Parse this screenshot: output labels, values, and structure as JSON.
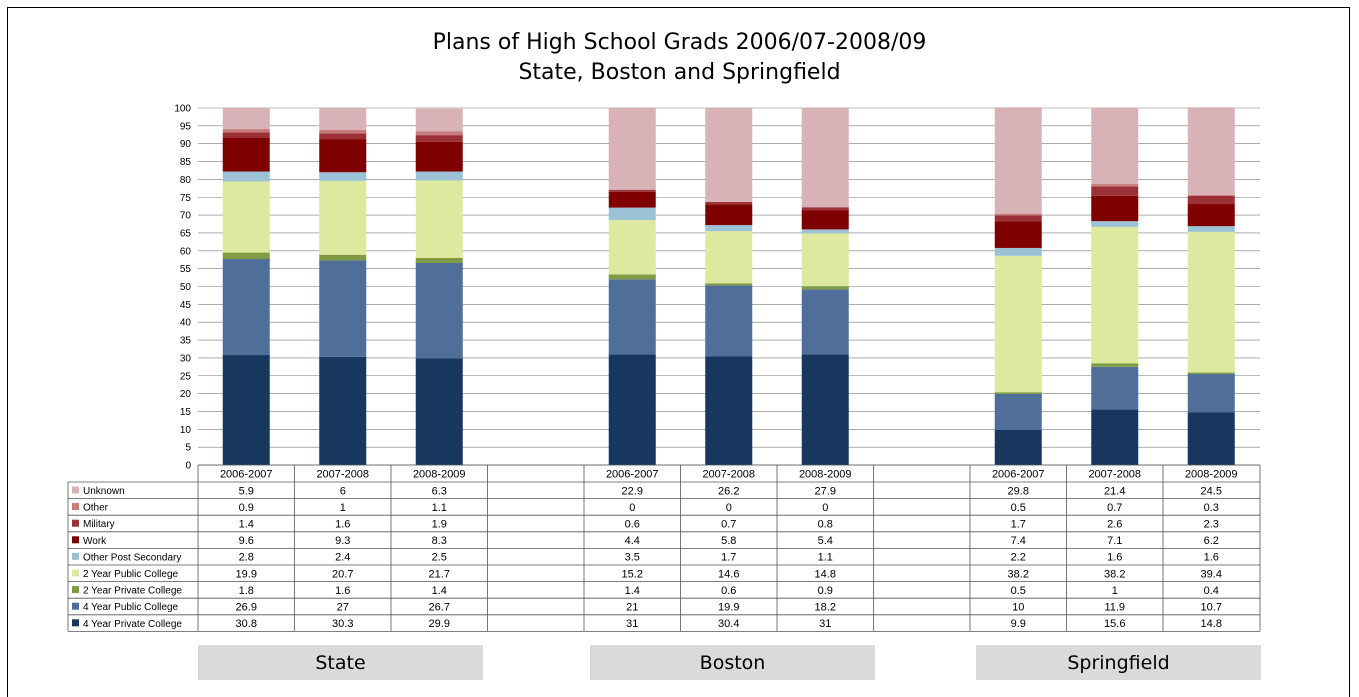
{
  "chart_data": {
    "type": "bar",
    "stacked": true,
    "title": "Plans of High School Grads 2006/07-2008/09",
    "subtitle": "State, Boston and Springfield",
    "ylim": [
      0,
      100
    ],
    "yticks": [
      0,
      5,
      10,
      15,
      20,
      25,
      30,
      35,
      40,
      45,
      50,
      55,
      60,
      65,
      70,
      75,
      80,
      85,
      90,
      95,
      100
    ],
    "grid": true,
    "groups": [
      "State",
      "Boston",
      "Springfield"
    ],
    "categories": [
      "2006-2007",
      "2007-2008",
      "2008-2009"
    ],
    "series": [
      {
        "name": "4 Year Private College",
        "color": "#17375e",
        "values": [
          [
            30.8,
            30.3,
            29.9
          ],
          [
            31,
            30.4,
            31
          ],
          [
            9.9,
            15.6,
            14.8
          ]
        ]
      },
      {
        "name": "4 Year Public College",
        "color": "#4f6e99",
        "values": [
          [
            26.9,
            27,
            26.7
          ],
          [
            21,
            19.9,
            18.2
          ],
          [
            10,
            11.9,
            10.7
          ]
        ]
      },
      {
        "name": "2 Year Private College",
        "color": "#7f9b43",
        "values": [
          [
            1.8,
            1.6,
            1.4
          ],
          [
            1.4,
            0.6,
            0.9
          ],
          [
            0.5,
            1,
            0.4
          ]
        ]
      },
      {
        "name": "2 Year Public College",
        "color": "#dde99e",
        "values": [
          [
            19.9,
            20.7,
            21.7
          ],
          [
            15.2,
            14.6,
            14.8
          ],
          [
            38.2,
            38.2,
            39.4
          ]
        ]
      },
      {
        "name": "Other Post Secondary",
        "color": "#9cc2d5",
        "values": [
          [
            2.8,
            2.4,
            2.5
          ],
          [
            3.5,
            1.7,
            1.1
          ],
          [
            2.2,
            1.6,
            1.6
          ]
        ]
      },
      {
        "name": "Work",
        "color": "#7f0000",
        "values": [
          [
            9.6,
            9.3,
            8.3
          ],
          [
            4.4,
            5.8,
            5.4
          ],
          [
            7.4,
            7.1,
            6.2
          ]
        ]
      },
      {
        "name": "Military",
        "color": "#9b3036",
        "values": [
          [
            1.4,
            1.6,
            1.9
          ],
          [
            0.6,
            0.7,
            0.8
          ],
          [
            1.7,
            2.6,
            2.3
          ]
        ]
      },
      {
        "name": "Other",
        "color": "#c87b7b",
        "values": [
          [
            0.9,
            1,
            1.1
          ],
          [
            0,
            0,
            0
          ],
          [
            0.5,
            0.7,
            0.3
          ]
        ]
      },
      {
        "name": "Unknown",
        "color": "#d9b2b8",
        "values": [
          [
            5.9,
            6,
            6.3
          ],
          [
            22.9,
            26.2,
            27.9
          ],
          [
            29.8,
            21.4,
            24.5
          ]
        ]
      }
    ],
    "table_cells": [
      {
        "series": "Unknown",
        "values": [
          "5.9",
          "6",
          "6.3",
          "22.9",
          "26.2",
          "27.9",
          "29.8",
          "21.4",
          "24.5"
        ]
      },
      {
        "series": "Other",
        "values": [
          "0.9",
          "1",
          "1.1",
          "0",
          "0",
          "0",
          "0.5",
          "0.7",
          "0.3"
        ]
      },
      {
        "series": "Military",
        "values": [
          "1.4",
          "1.6",
          "1.9",
          "0.6",
          "0.7",
          "0.8",
          "1.7",
          "2.6",
          "2.3"
        ]
      },
      {
        "series": "Work",
        "values": [
          "9.6",
          "9.3",
          "8.3",
          "4.4",
          "5.8",
          "5.4",
          "7.4",
          "7.1",
          "6.2"
        ]
      },
      {
        "series": "Other Post Secondary",
        "values": [
          "2.8",
          "2.4",
          "2.5",
          "3.5",
          "1.7",
          "1.1",
          "2.2",
          "1.6",
          "1.6"
        ]
      },
      {
        "series": "2 Year Public College",
        "values": [
          "19.9",
          "20.7",
          "21.7",
          "15.2",
          "14.6",
          "14.8",
          "38.2",
          "38.2",
          "39.4"
        ]
      },
      {
        "series": "2 Year Private College",
        "values": [
          "1.8",
          "1.6",
          "1.4",
          "1.4",
          "0.6",
          "0.9",
          "0.5",
          "1",
          "0.4"
        ]
      },
      {
        "series": "4 Year Public College",
        "values": [
          "26.9",
          "27",
          "26.7",
          "21",
          "19.9",
          "18.2",
          "10",
          "11.9",
          "10.7"
        ]
      },
      {
        "series": "4 Year Private College",
        "values": [
          "30.8",
          "30.3",
          "29.9",
          "31",
          "30.4",
          "31",
          "9.9",
          "15.6",
          "14.8"
        ]
      }
    ]
  }
}
